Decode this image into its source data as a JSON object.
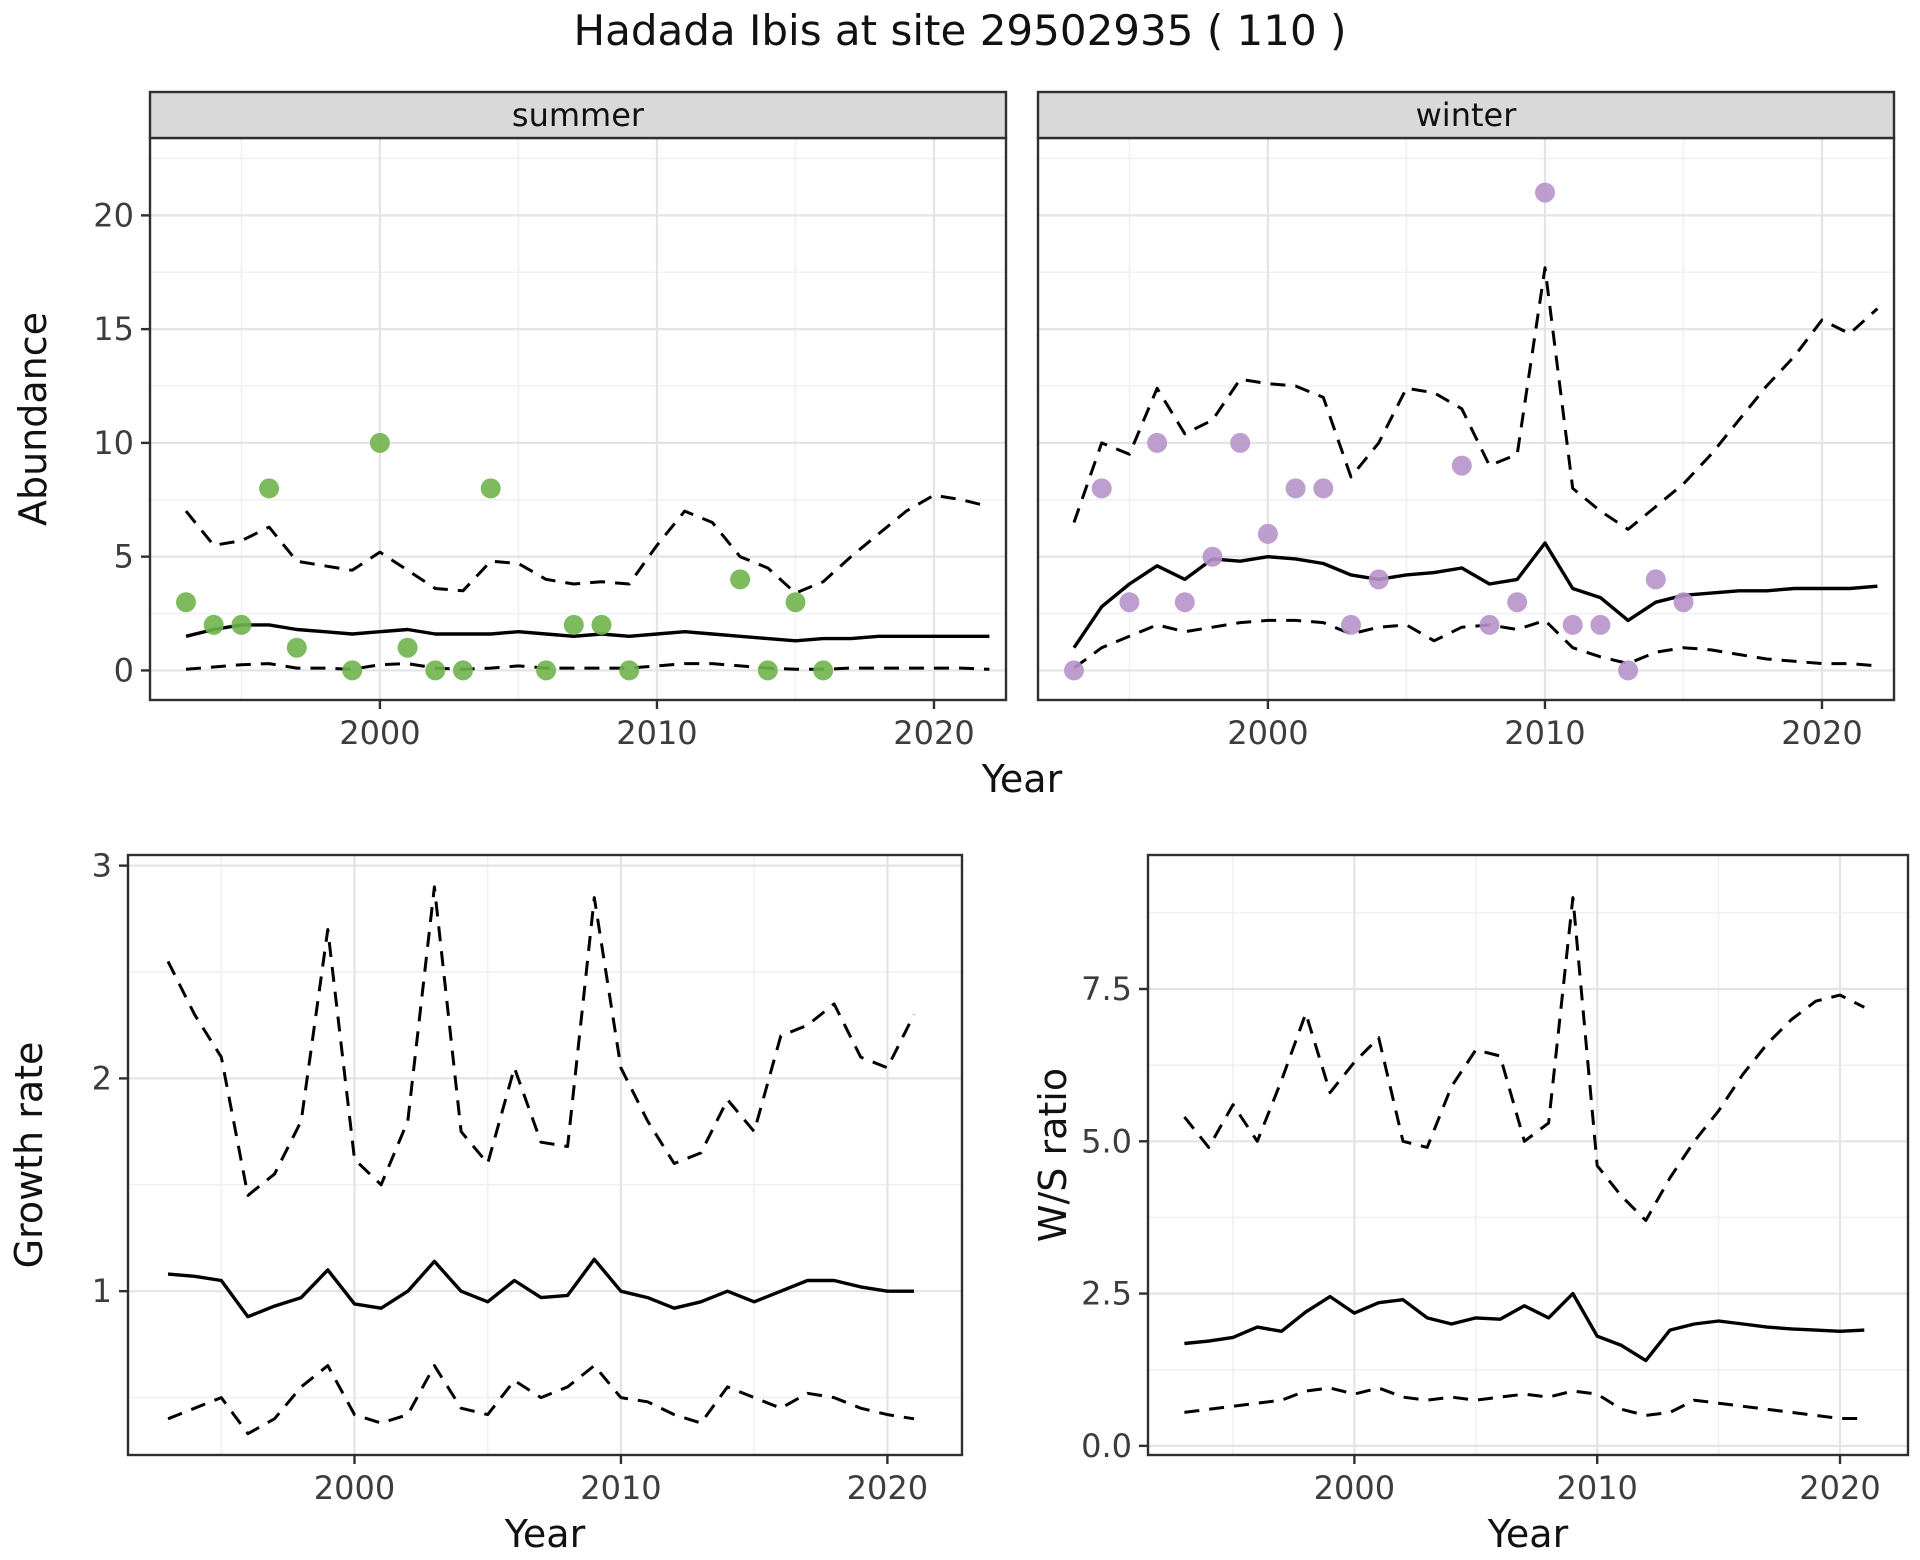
{
  "title": "Hadada Ibis at site 29502935 ( 110 )",
  "styles": {
    "panel_bg": "#ffffff",
    "strip_bg": "#d9d9d9",
    "border": "#2f2f2f",
    "grid_major": "#e4e4e4",
    "grid_minor": "#f1f1f1",
    "line_color": "#000000",
    "text": "#111111",
    "tick_label": "#3d3d3d",
    "summer_point_color": "#6fb44c",
    "winter_point_color": "#b794c9"
  },
  "chart_data": [
    {
      "id": "abundance-summer",
      "type": "line+scatter",
      "strip": "summer",
      "xlabel": "Year",
      "ylabel": "Abundance",
      "xlim": [
        1991.7,
        2022.6
      ],
      "ylim": [
        -1.3,
        23.4
      ],
      "xticks": [
        2000,
        2010,
        2020
      ],
      "yticks": [
        0,
        5,
        10,
        15,
        20
      ],
      "ytick_labels": [
        "0",
        "5",
        "10",
        "15",
        "20"
      ],
      "minor_xticks": [
        1995,
        2005,
        2015
      ],
      "minor_yticks": [
        2.5,
        7.5,
        12.5,
        17.5,
        22.5
      ],
      "years": [
        1993,
        1994,
        1995,
        1996,
        1997,
        1998,
        1999,
        2000,
        2001,
        2002,
        2003,
        2004,
        2005,
        2006,
        2007,
        2008,
        2009,
        2010,
        2011,
        2012,
        2013,
        2014,
        2015,
        2016,
        2017,
        2018,
        2019,
        2020,
        2021,
        2022
      ],
      "series": [
        {
          "name": "lower-ci",
          "style": "dashed",
          "y": [
            0.05,
            0.15,
            0.25,
            0.3,
            0.1,
            0.1,
            0.05,
            0.25,
            0.3,
            0.1,
            0.05,
            0.1,
            0.2,
            0.1,
            0.1,
            0.1,
            0.1,
            0.2,
            0.3,
            0.3,
            0.2,
            0.1,
            0.05,
            0.05,
            0.1,
            0.1,
            0.1,
            0.1,
            0.1,
            0.05
          ]
        },
        {
          "name": "upper-ci",
          "style": "dashed",
          "y": [
            7.0,
            5.5,
            5.7,
            6.3,
            4.8,
            4.6,
            4.4,
            5.2,
            4.4,
            3.6,
            3.5,
            4.8,
            4.7,
            4.0,
            3.8,
            3.9,
            3.8,
            5.5,
            7.0,
            6.5,
            5.0,
            4.5,
            3.4,
            3.9,
            5.0,
            6.0,
            7.0,
            7.7,
            7.5,
            7.2
          ]
        },
        {
          "name": "fit",
          "style": "solid",
          "y": [
            1.5,
            1.8,
            2.0,
            2.0,
            1.8,
            1.7,
            1.6,
            1.7,
            1.8,
            1.6,
            1.6,
            1.6,
            1.7,
            1.6,
            1.5,
            1.6,
            1.5,
            1.6,
            1.7,
            1.6,
            1.5,
            1.4,
            1.3,
            1.4,
            1.4,
            1.5,
            1.5,
            1.5,
            1.5,
            1.5
          ]
        },
        {
          "name": "observed",
          "style": "points",
          "color": "summer_point_color",
          "x": [
            1993,
            1994,
            1995,
            1996,
            1997,
            1999,
            2000,
            2001,
            2002,
            2003,
            2004,
            2006,
            2007,
            2008,
            2009,
            2013,
            2014,
            2015,
            2016
          ],
          "y": [
            3,
            2,
            2,
            8,
            1,
            0,
            10,
            1,
            0,
            0,
            8,
            0,
            2,
            2,
            0,
            4,
            0,
            3,
            0
          ]
        }
      ]
    },
    {
      "id": "abundance-winter",
      "type": "line+scatter",
      "strip": "winter",
      "xlabel": "",
      "ylabel": "",
      "xlim": [
        1991.7,
        2022.6
      ],
      "ylim": [
        -1.3,
        23.4
      ],
      "xticks": [
        2000,
        2010,
        2020
      ],
      "yticks": [
        0,
        5,
        10,
        15,
        20
      ],
      "ytick_labels": [
        "0",
        "5",
        "10",
        "15",
        "20"
      ],
      "minor_xticks": [
        1995,
        2005,
        2015
      ],
      "minor_yticks": [
        2.5,
        7.5,
        12.5,
        17.5,
        22.5
      ],
      "years": [
        1993,
        1994,
        1995,
        1996,
        1997,
        1998,
        1999,
        2000,
        2001,
        2002,
        2003,
        2004,
        2005,
        2006,
        2007,
        2008,
        2009,
        2010,
        2011,
        2012,
        2013,
        2014,
        2015,
        2016,
        2017,
        2018,
        2019,
        2020,
        2021,
        2022
      ],
      "series": [
        {
          "name": "lower-ci",
          "style": "dashed",
          "y": [
            0.1,
            1.0,
            1.5,
            2.0,
            1.7,
            1.9,
            2.1,
            2.2,
            2.2,
            2.1,
            1.6,
            1.9,
            2.0,
            1.3,
            1.9,
            2.0,
            1.8,
            2.2,
            1.0,
            0.6,
            0.3,
            0.8,
            1.0,
            0.9,
            0.7,
            0.5,
            0.4,
            0.3,
            0.3,
            0.2
          ]
        },
        {
          "name": "upper-ci",
          "style": "dashed",
          "y": [
            6.5,
            10.0,
            9.5,
            12.4,
            10.4,
            11.0,
            12.8,
            12.6,
            12.5,
            12.0,
            8.5,
            10.0,
            12.4,
            12.2,
            11.5,
            9.0,
            9.5,
            17.7,
            8.0,
            7.0,
            6.2,
            7.2,
            8.2,
            9.5,
            11.0,
            12.5,
            13.8,
            15.4,
            14.8,
            15.9
          ]
        },
        {
          "name": "fit",
          "style": "solid",
          "y": [
            1.0,
            2.8,
            3.8,
            4.6,
            4.0,
            4.9,
            4.8,
            5.0,
            4.9,
            4.7,
            4.2,
            4.0,
            4.2,
            4.3,
            4.5,
            3.8,
            4.0,
            5.6,
            3.6,
            3.2,
            2.2,
            3.0,
            3.3,
            3.4,
            3.5,
            3.5,
            3.6,
            3.6,
            3.6,
            3.7
          ]
        },
        {
          "name": "observed",
          "style": "points",
          "color": "winter_point_color",
          "x": [
            1993,
            1994,
            1995,
            1996,
            1997,
            1998,
            1999,
            2000,
            2001,
            2002,
            2003,
            2004,
            2007,
            2008,
            2009,
            2010,
            2011,
            2012,
            2013,
            2014,
            2015
          ],
          "y": [
            0,
            8,
            3,
            10,
            3,
            5,
            10,
            6,
            8,
            8,
            2,
            4,
            9,
            2,
            3,
            21,
            2,
            2,
            0,
            4,
            3
          ]
        }
      ]
    },
    {
      "id": "growth-rate",
      "type": "line",
      "strip": "",
      "xlabel": "Year",
      "ylabel": "Growth rate",
      "xlim": [
        1991.5,
        2022.8
      ],
      "ylim": [
        0.23,
        3.05
      ],
      "xticks": [
        2000,
        2010,
        2020
      ],
      "yticks": [
        1,
        2,
        3
      ],
      "ytick_labels": [
        "1",
        "2",
        "3"
      ],
      "minor_xticks": [
        1995,
        2005,
        2015
      ],
      "minor_yticks": [
        0.5,
        1.5,
        2.5
      ],
      "years": [
        1993,
        1994,
        1995,
        1996,
        1997,
        1998,
        1999,
        2000,
        2001,
        2002,
        2003,
        2004,
        2005,
        2006,
        2007,
        2008,
        2009,
        2010,
        2011,
        2012,
        2013,
        2014,
        2015,
        2016,
        2017,
        2018,
        2019,
        2020,
        2021
      ],
      "series": [
        {
          "name": "lower-ci",
          "style": "dashed",
          "y": [
            0.4,
            0.45,
            0.5,
            0.33,
            0.4,
            0.55,
            0.65,
            0.42,
            0.38,
            0.42,
            0.65,
            0.45,
            0.42,
            0.58,
            0.5,
            0.55,
            0.65,
            0.5,
            0.48,
            0.42,
            0.38,
            0.55,
            0.5,
            0.45,
            0.52,
            0.5,
            0.45,
            0.42,
            0.4
          ]
        },
        {
          "name": "upper-ci",
          "style": "dashed",
          "y": [
            2.55,
            2.3,
            2.1,
            1.45,
            1.55,
            1.8,
            2.7,
            1.62,
            1.5,
            1.8,
            2.9,
            1.75,
            1.6,
            2.05,
            1.7,
            1.68,
            2.85,
            2.05,
            1.8,
            1.6,
            1.65,
            1.9,
            1.75,
            2.2,
            2.25,
            2.35,
            2.1,
            2.05,
            2.3
          ]
        },
        {
          "name": "fit",
          "style": "solid",
          "y": [
            1.08,
            1.07,
            1.05,
            0.88,
            0.93,
            0.97,
            1.1,
            0.94,
            0.92,
            1.0,
            1.14,
            1.0,
            0.95,
            1.05,
            0.97,
            0.98,
            1.15,
            1.0,
            0.97,
            0.92,
            0.95,
            1.0,
            0.95,
            1.0,
            1.05,
            1.05,
            1.02,
            1.0,
            1.0
          ]
        }
      ]
    },
    {
      "id": "ws-ratio",
      "type": "line",
      "strip": "",
      "xlabel": "Year",
      "ylabel": "W/S ratio",
      "xlim": [
        1991.5,
        2022.8
      ],
      "ylim": [
        -0.15,
        9.7
      ],
      "xticks": [
        2000,
        2010,
        2020
      ],
      "yticks": [
        0,
        2.5,
        5,
        7.5
      ],
      "ytick_labels": [
        "0.0",
        "2.5",
        "5.0",
        "7.5"
      ],
      "minor_xticks": [
        1995,
        2005,
        2015
      ],
      "minor_yticks": [
        1.25,
        3.75,
        6.25,
        8.75
      ],
      "years": [
        1993,
        1994,
        1995,
        1996,
        1997,
        1998,
        1999,
        2000,
        2001,
        2002,
        2003,
        2004,
        2005,
        2006,
        2007,
        2008,
        2009,
        2010,
        2011,
        2012,
        2013,
        2014,
        2015,
        2016,
        2017,
        2018,
        2019,
        2020,
        2021
      ],
      "series": [
        {
          "name": "lower-ci",
          "style": "dashed",
          "y": [
            0.55,
            0.6,
            0.65,
            0.7,
            0.75,
            0.9,
            0.95,
            0.85,
            0.95,
            0.8,
            0.75,
            0.8,
            0.75,
            0.8,
            0.85,
            0.8,
            0.9,
            0.85,
            0.6,
            0.5,
            0.55,
            0.75,
            0.7,
            0.65,
            0.6,
            0.55,
            0.5,
            0.45,
            0.45
          ]
        },
        {
          "name": "upper-ci",
          "style": "dashed",
          "y": [
            5.4,
            4.9,
            5.6,
            5.0,
            6.0,
            7.1,
            5.8,
            6.3,
            6.7,
            5.0,
            4.9,
            5.9,
            6.5,
            6.4,
            5.0,
            5.3,
            9.0,
            4.6,
            4.1,
            3.7,
            4.4,
            5.0,
            5.5,
            6.1,
            6.6,
            7.0,
            7.3,
            7.4,
            7.2
          ]
        },
        {
          "name": "fit",
          "style": "solid",
          "y": [
            1.68,
            1.72,
            1.78,
            1.95,
            1.88,
            2.2,
            2.45,
            2.18,
            2.35,
            2.4,
            2.1,
            2.0,
            2.1,
            2.08,
            2.3,
            2.1,
            2.5,
            1.8,
            1.65,
            1.4,
            1.9,
            2.0,
            2.05,
            2.0,
            1.95,
            1.92,
            1.9,
            1.88,
            1.9
          ]
        }
      ]
    }
  ]
}
